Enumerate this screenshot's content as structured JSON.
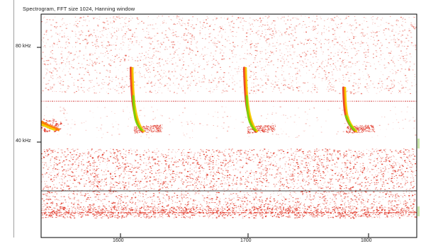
{
  "window": {
    "title": "Spectrogram, FFT size 1024, Hanning window"
  },
  "axes": {
    "y_ticks": [
      {
        "label": "80 kHz",
        "value": 80
      },
      {
        "label": "40 kHz",
        "value": 40
      }
    ],
    "x_ticks": [
      {
        "label": "1600",
        "value": 1600
      },
      {
        "label": "1700",
        "value": 1700
      },
      {
        "label": "1800",
        "value": 1800
      }
    ]
  },
  "colors": {
    "background": "#ffffff",
    "noise": "#e03020",
    "call_core_green": "#7ad600",
    "call_yellow": "#f2d000",
    "call_orange": "#ff7a00",
    "band_line": "#d85050",
    "cursor_line": "#404040",
    "frame": "#000000",
    "accent_green": "#c8e6a8"
  }
}
